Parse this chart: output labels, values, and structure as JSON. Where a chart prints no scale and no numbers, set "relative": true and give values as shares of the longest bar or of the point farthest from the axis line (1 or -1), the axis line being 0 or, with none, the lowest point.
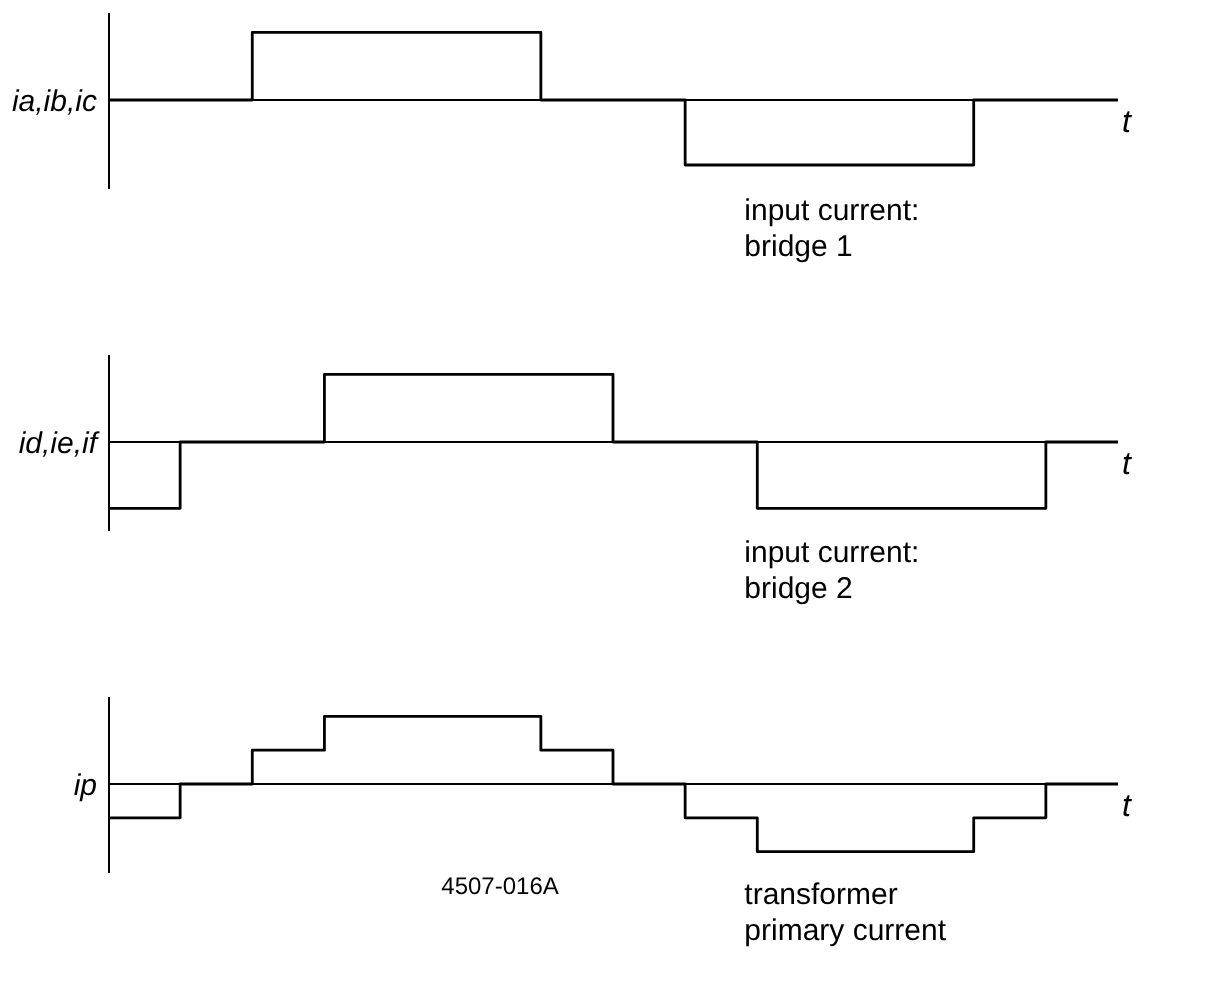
{
  "chart_data": [
    {
      "type": "step",
      "relative": true,
      "ylabel": "ia,ib,ic",
      "xlabel": "t",
      "categories": [
        null,
        null,
        null,
        null,
        null,
        null,
        null,
        null,
        null,
        null,
        null,
        null,
        null,
        null,
        null
      ],
      "series": [
        {
          "color": "#000000",
          "values": [
            0,
            0,
            1,
            1,
            1,
            1,
            0,
            0,
            -0.96,
            -0.96,
            -0.96,
            -0.96,
            0,
            0,
            0
          ]
        }
      ],
      "annotations": [
        "input current:\nbridge 1"
      ]
    },
    {
      "type": "step",
      "relative": true,
      "ylabel": "id,ie,if",
      "xlabel": "t",
      "categories": [
        null,
        null,
        null,
        null,
        null,
        null,
        null,
        null,
        null,
        null,
        null,
        null,
        null,
        null,
        null
      ],
      "series": [
        {
          "color": "#000000",
          "values": [
            -0.98,
            0,
            0,
            1,
            1,
            1,
            1,
            0,
            0,
            -0.98,
            -0.98,
            -0.98,
            -0.98,
            0,
            0
          ]
        }
      ],
      "annotations": [
        "input current:\nbridge 2"
      ]
    },
    {
      "type": "step",
      "relative": true,
      "ylabel": "ip",
      "xlabel": "t",
      "categories": [
        null,
        null,
        null,
        null,
        null,
        null,
        null,
        null,
        null,
        null,
        null,
        null,
        null,
        null,
        null
      ],
      "series": [
        {
          "color": "#000000",
          "values": [
            -0.5,
            0,
            0.5,
            1,
            1,
            1,
            0.5,
            0,
            -0.5,
            -1,
            -1,
            -1,
            -0.5,
            0,
            0
          ]
        }
      ],
      "annotations": [
        "4507-016A",
        "transformer\nprimary current"
      ]
    }
  ]
}
